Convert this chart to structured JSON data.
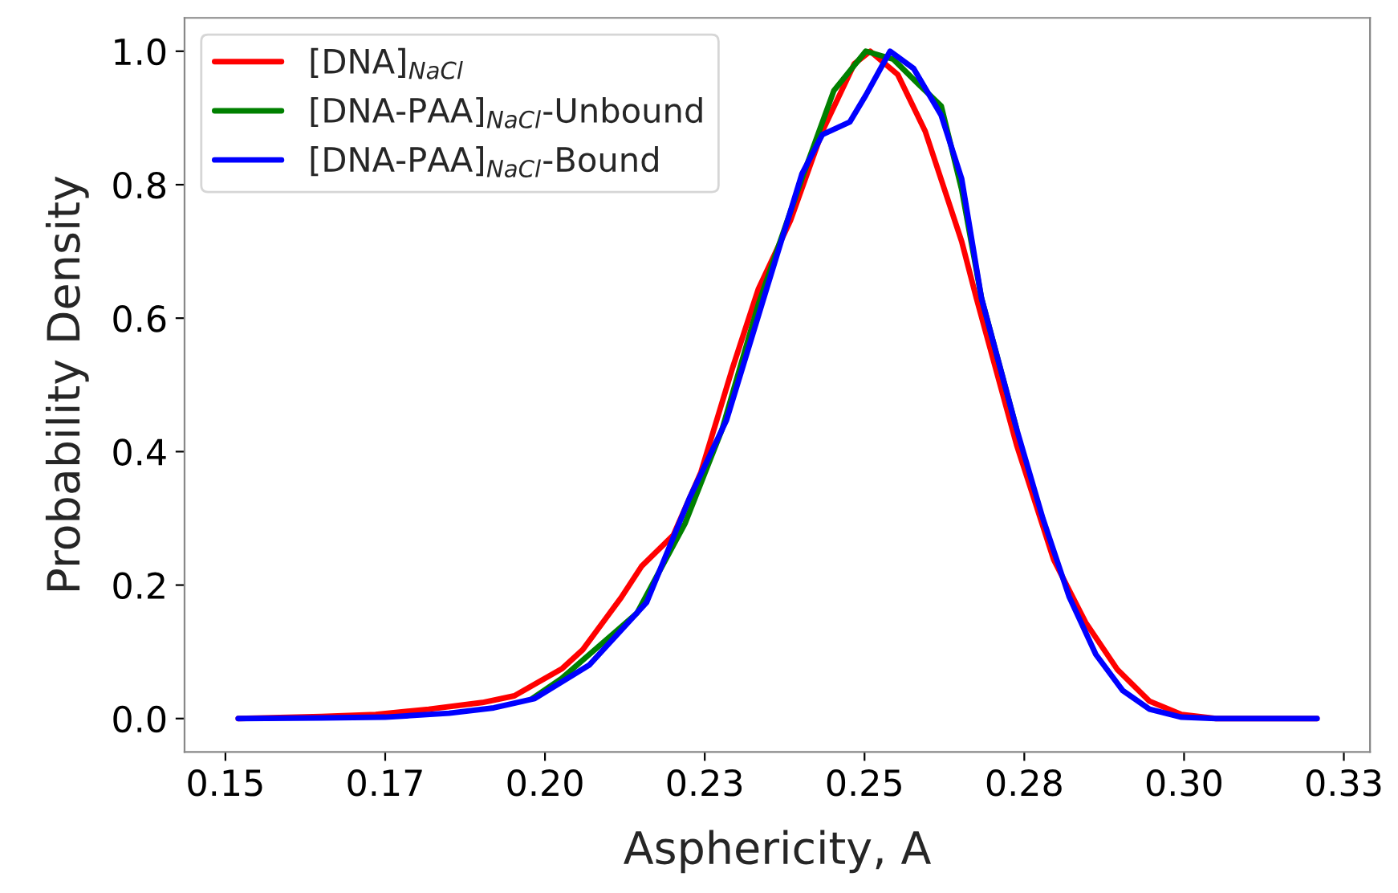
{
  "chart_data": {
    "type": "line",
    "xlabel": "Asphericity, A",
    "ylabel": "Probability Density",
    "xlim": [
      0.1436,
      0.3291
    ],
    "ylim": [
      -0.05,
      1.05
    ],
    "xticks": [
      {
        "value": 0.15,
        "label": "0.15"
      },
      {
        "value": 0.175,
        "label": "0.17"
      },
      {
        "value": 0.2,
        "label": "0.20"
      },
      {
        "value": 0.225,
        "label": "0.23"
      },
      {
        "value": 0.25,
        "label": "0.25"
      },
      {
        "value": 0.275,
        "label": "0.28"
      },
      {
        "value": 0.3,
        "label": "0.30"
      },
      {
        "value": 0.325,
        "label": "0.33"
      }
    ],
    "yticks": [
      {
        "value": 0,
        "label": "0.0"
      },
      0.2,
      0.4,
      0.6,
      0.8,
      {
        "value": 1.0,
        "label": "1.0"
      }
    ],
    "grid": false,
    "legend": "top left",
    "marker": "none",
    "line_style": "solid",
    "series": [
      {
        "name": "[DNA]$_{NaCl}$",
        "color": "#ff0000",
        "x": [
          0.152,
          0.165,
          0.1735,
          0.1818,
          0.1902,
          0.1952,
          0.1985,
          0.2027,
          0.2059,
          0.2119,
          0.2151,
          0.2201,
          0.2244,
          0.2294,
          0.2334,
          0.2384,
          0.2434,
          0.2484,
          0.2509,
          0.2552,
          0.2595,
          0.2652,
          0.2675,
          0.2738,
          0.2796,
          0.2846,
          0.2896,
          0.2946,
          0.2996,
          0.305,
          0.3208
        ],
        "values": [
          0,
          0.003,
          0.006,
          0.014,
          0.024,
          0.034,
          0.052,
          0.075,
          0.103,
          0.181,
          0.228,
          0.275,
          0.369,
          0.527,
          0.644,
          0.746,
          0.88,
          0.981,
          1.0,
          0.965,
          0.88,
          0.715,
          0.63,
          0.41,
          0.238,
          0.144,
          0.073,
          0.026,
          0.006,
          0,
          0
        ]
      },
      {
        "name": "[DNA-PAA]$_{NaCl}$-Unbound",
        "color": "#008000",
        "x": [
          0.198,
          0.2026,
          0.2144,
          0.2219,
          0.2277,
          0.2334,
          0.2402,
          0.2452,
          0.2502,
          0.2545,
          0.2585,
          0.262,
          0.2652,
          0.2683,
          0.2738
        ],
        "values": [
          0.03,
          0.06,
          0.158,
          0.292,
          0.433,
          0.621,
          0.809,
          0.941,
          1.0,
          0.988,
          0.95,
          0.918,
          0.793,
          0.63,
          0.434
        ]
      },
      {
        "name": "[DNA-PAA]$_{NaCl}$-Bound",
        "color": "#0000ff",
        "x": [
          0.152,
          0.165,
          0.175,
          0.185,
          0.192,
          0.1984,
          0.2069,
          0.2159,
          0.2226,
          0.2284,
          0.2344,
          0.2402,
          0.2434,
          0.2477,
          0.2502,
          0.254,
          0.2577,
          0.262,
          0.2652,
          0.2683,
          0.2738,
          0.2779,
          0.282,
          0.2862,
          0.2904,
          0.2946,
          0.2996,
          0.305,
          0.3208
        ],
        "values": [
          0,
          0.001,
          0.002,
          0.008,
          0.016,
          0.03,
          0.08,
          0.174,
          0.33,
          0.447,
          0.635,
          0.816,
          0.875,
          0.894,
          0.934,
          1.0,
          0.974,
          0.904,
          0.809,
          0.63,
          0.434,
          0.3,
          0.183,
          0.096,
          0.042,
          0.014,
          0.002,
          0,
          0
        ]
      }
    ]
  }
}
